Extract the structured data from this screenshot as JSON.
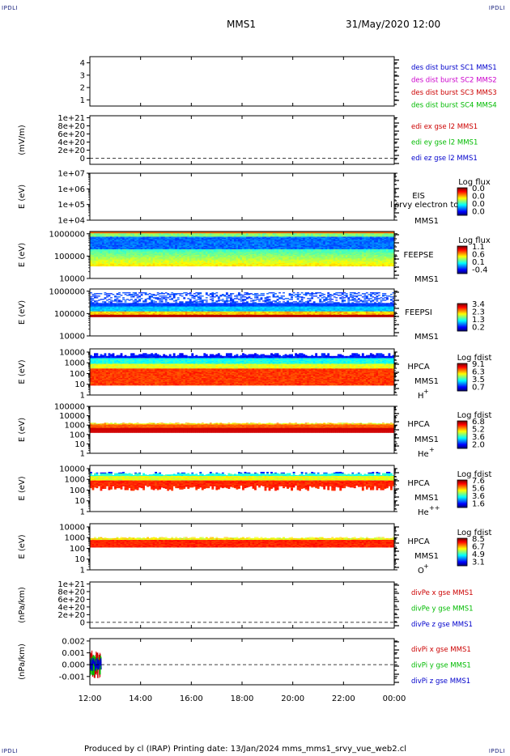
{
  "corner_label": "IPDLI",
  "header": {
    "spacecraft": "MMS1",
    "datetime": "31/May/2020 12:00"
  },
  "footer": "Produced by cl (IRAP)   Printing date: 13/Jan/2024   mms_mms1_srvy_vue_web2.cl",
  "chart_data": {
    "type": "heatmap",
    "time_axis": {
      "ticks": [
        "12:00",
        "14:00",
        "16:00",
        "18:00",
        "20:00",
        "22:00",
        "00:00"
      ],
      "range_hours": [
        12,
        24
      ]
    },
    "panels": [
      {
        "id": "burst",
        "kind": "line",
        "yticks": [
          "4",
          "3",
          "2",
          "1"
        ],
        "ymin": 0.5,
        "ymax": 4.5,
        "ticks_values": [
          4,
          3,
          2,
          1
        ],
        "legend": [
          {
            "text": "des dist burst SC1 MMS1",
            "color": "#0000cc"
          },
          {
            "text": "des dist burst SC2 MMS2",
            "color": "#cc00cc"
          },
          {
            "text": "des dist burst SC3 MMS3",
            "color": "#cc0000"
          },
          {
            "text": "des dist burst SC4 MMS4",
            "color": "#00bb00"
          }
        ]
      },
      {
        "id": "edi",
        "kind": "line",
        "ylabel": "(mV/m)",
        "yticks": [
          "1e+21",
          "8e+20",
          "6e+20",
          "4e+20",
          "2e+20",
          "0"
        ],
        "ymin": -1.5e+20,
        "ymax": 1.05e+21,
        "ticks_values": [
          1e+21,
          8e+20,
          6e+20,
          4e+20,
          2e+20,
          0
        ],
        "zero_line": true,
        "legend": [
          {
            "text": "edi ex gse l2 MMS1",
            "color": "#cc0000"
          },
          {
            "text": "edi ey gse l2 MMS1",
            "color": "#00bb00"
          },
          {
            "text": "edi ez gse l2 MMS1",
            "color": "#0000cc"
          }
        ]
      },
      {
        "id": "eis",
        "kind": "spectrogram",
        "ylabel": "E (eV)",
        "log": true,
        "yticks": [
          "1e+07",
          "1e+06",
          "1e+05",
          "1e+04"
        ],
        "ymin": 4,
        "ymax": 7,
        "ticks_values": [
          7,
          6,
          5,
          4
        ],
        "labels": [
          "EIS",
          "MMS1"
        ],
        "overlay_text": "l srvy electron to",
        "cbar": {
          "title": "Log flux",
          "values": [
            "0.0",
            "0.0",
            "0.0",
            "0.0"
          ]
        }
      },
      {
        "id": "feepse",
        "kind": "spectrogram",
        "ylabel": "E (eV)",
        "log": true,
        "yticks": [
          "1000000",
          "100000",
          "10000"
        ],
        "ymin": 4,
        "ymax": 6.1,
        "ticks_values": [
          6,
          5,
          4
        ],
        "labels": [
          "FEEPSE",
          "MMS1"
        ],
        "cbar": {
          "title": "Log flux",
          "values": [
            "1.1",
            "0.6",
            "0.1",
            "-0.4"
          ]
        }
      },
      {
        "id": "feepsi",
        "kind": "spectrogram",
        "ylabel": "E (eV)",
        "log": true,
        "yticks": [
          "1000000",
          "100000",
          "10000"
        ],
        "ymin": 4,
        "ymax": 6.1,
        "ticks_values": [
          6,
          5,
          4
        ],
        "labels": [
          "FEEPSI",
          "MMS1"
        ],
        "cbar": {
          "title": "",
          "values": [
            "3.4",
            "2.3",
            "1.3",
            "0.2"
          ]
        }
      },
      {
        "id": "hpca_h",
        "kind": "spectrogram",
        "ylabel": "E (eV)",
        "log": true,
        "yticks": [
          "10000",
          "1000",
          "100",
          "10",
          "1"
        ],
        "ymin": 0,
        "ymax": 4.3,
        "ticks_values": [
          4,
          3,
          2,
          1,
          0
        ],
        "labels": [
          "HPCA",
          "MMS1"
        ],
        "species": "H",
        "charge": "+",
        "cbar": {
          "title": "Log fdist",
          "values": [
            "9.1",
            "6.3",
            "3.5",
            "0.7"
          ]
        }
      },
      {
        "id": "hpca_he",
        "kind": "spectrogram",
        "ylabel": "E (eV)",
        "log": true,
        "yticks": [
          "100000",
          "10000",
          "1000",
          "100",
          "10",
          "1"
        ],
        "ymin": 0,
        "ymax": 5,
        "ticks_values": [
          5,
          4,
          3,
          2,
          1,
          0
        ],
        "labels": [
          "HPCA",
          "MMS1"
        ],
        "species": "He",
        "charge": "+",
        "cbar": {
          "title": "Log fdist",
          "values": [
            "6.8",
            "5.2",
            "3.6",
            "2.0"
          ]
        }
      },
      {
        "id": "hpca_hepp",
        "kind": "spectrogram",
        "ylabel": "E (eV)",
        "log": true,
        "yticks": [
          "10000",
          "1000",
          "100",
          "10",
          "1"
        ],
        "ymin": 0,
        "ymax": 4.3,
        "ticks_values": [
          4,
          3,
          2,
          1,
          0
        ],
        "labels": [
          "HPCA",
          "MMS1"
        ],
        "species": "He",
        "charge": "++",
        "cbar": {
          "title": "Log fdist",
          "values": [
            "7.6",
            "5.6",
            "3.6",
            "1.6"
          ]
        }
      },
      {
        "id": "hpca_o",
        "kind": "spectrogram",
        "ylabel": "E (eV)",
        "log": true,
        "yticks": [
          "10000",
          "1000",
          "100",
          "10",
          "1"
        ],
        "ymin": 0,
        "ymax": 4.3,
        "ticks_values": [
          4,
          3,
          2,
          1,
          0
        ],
        "labels": [
          "HPCA",
          "MMS1"
        ],
        "species": "O",
        "charge": "+",
        "cbar": {
          "title": "Log fdist",
          "values": [
            "8.5",
            "6.7",
            "4.9",
            "3.1"
          ]
        }
      },
      {
        "id": "divpe",
        "kind": "line",
        "ylabel": "(nPa/km)",
        "yticks": [
          "1e+21",
          "8e+20",
          "6e+20",
          "4e+20",
          "2e+20",
          "0"
        ],
        "ymin": -1.5e+20,
        "ymax": 1.05e+21,
        "ticks_values": [
          1e+21,
          8e+20,
          6e+20,
          4e+20,
          2e+20,
          0
        ],
        "zero_line": true,
        "legend": [
          {
            "text": "divPe x gse MMS1",
            "color": "#cc0000"
          },
          {
            "text": "divPe y gse MMS1",
            "color": "#00bb00"
          },
          {
            "text": "divPe z gse MMS1",
            "color": "#0000cc"
          }
        ]
      },
      {
        "id": "divpi",
        "kind": "line",
        "ylabel": "(nPa/km)",
        "yticks": [
          "0.002",
          "0.001",
          "0.000",
          "-0.001"
        ],
        "ymin": -0.0017,
        "ymax": 0.0022,
        "ticks_values": [
          0.002,
          0.001,
          0,
          -0.001
        ],
        "zero_line": true,
        "burst_hours": [
          12.0,
          12.45
        ],
        "legend": [
          {
            "text": "divPi x gse MMS1",
            "color": "#cc0000"
          },
          {
            "text": "divPi y gse MMS1",
            "color": "#00bb00"
          },
          {
            "text": "divPi z gse MMS1",
            "color": "#0000cc"
          }
        ]
      }
    ]
  }
}
